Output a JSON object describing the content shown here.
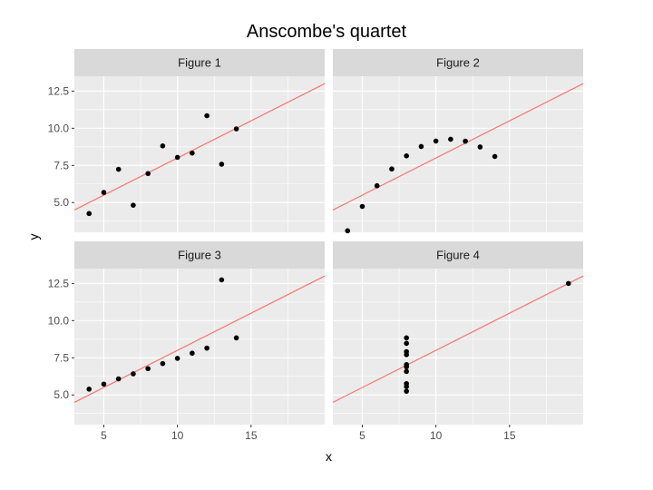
{
  "title": "Anscombe's quartet",
  "chart_data": {
    "type": "scatter",
    "title": "Anscombe's quartet",
    "xlabel": "x",
    "ylabel": "y",
    "xlim": [
      3,
      20
    ],
    "ylim": [
      3,
      13.5
    ],
    "x_ticks": [
      5,
      10,
      15
    ],
    "y_ticks": [
      5.0,
      7.5,
      10.0,
      12.5
    ],
    "x_tick_labels": [
      "5",
      "10",
      "15"
    ],
    "y_tick_labels": [
      "5.0",
      "7.5",
      "10.0",
      "12.5"
    ],
    "grid": true,
    "fit_line": {
      "intercept": 3.0,
      "slope": 0.5,
      "color": "#F8766D"
    },
    "colors": {
      "panel": "#EBEBEB",
      "strip": "#D9D9D9",
      "grid": "#FFFFFF",
      "point": "#000000"
    },
    "panels": [
      {
        "label": "Figure 1",
        "x": [
          10,
          8,
          13,
          9,
          11,
          14,
          6,
          4,
          12,
          7,
          5
        ],
        "y": [
          8.04,
          6.95,
          7.58,
          8.81,
          8.33,
          9.96,
          7.24,
          4.26,
          10.84,
          4.82,
          5.68
        ]
      },
      {
        "label": "Figure 2",
        "x": [
          10,
          8,
          13,
          9,
          11,
          14,
          6,
          4,
          12,
          7,
          5
        ],
        "y": [
          9.14,
          8.14,
          8.74,
          8.77,
          9.26,
          8.1,
          6.13,
          3.1,
          9.13,
          7.26,
          4.74
        ]
      },
      {
        "label": "Figure 3",
        "x": [
          10,
          8,
          13,
          9,
          11,
          14,
          6,
          4,
          12,
          7,
          5
        ],
        "y": [
          7.46,
          6.77,
          12.74,
          7.11,
          7.81,
          8.84,
          6.08,
          5.39,
          8.15,
          6.42,
          5.73
        ]
      },
      {
        "label": "Figure 4",
        "x": [
          8,
          8,
          8,
          8,
          8,
          8,
          8,
          19,
          8,
          8,
          8
        ],
        "y": [
          6.58,
          5.76,
          7.71,
          8.84,
          8.47,
          7.04,
          5.25,
          12.5,
          5.56,
          7.91,
          6.89
        ]
      }
    ]
  }
}
